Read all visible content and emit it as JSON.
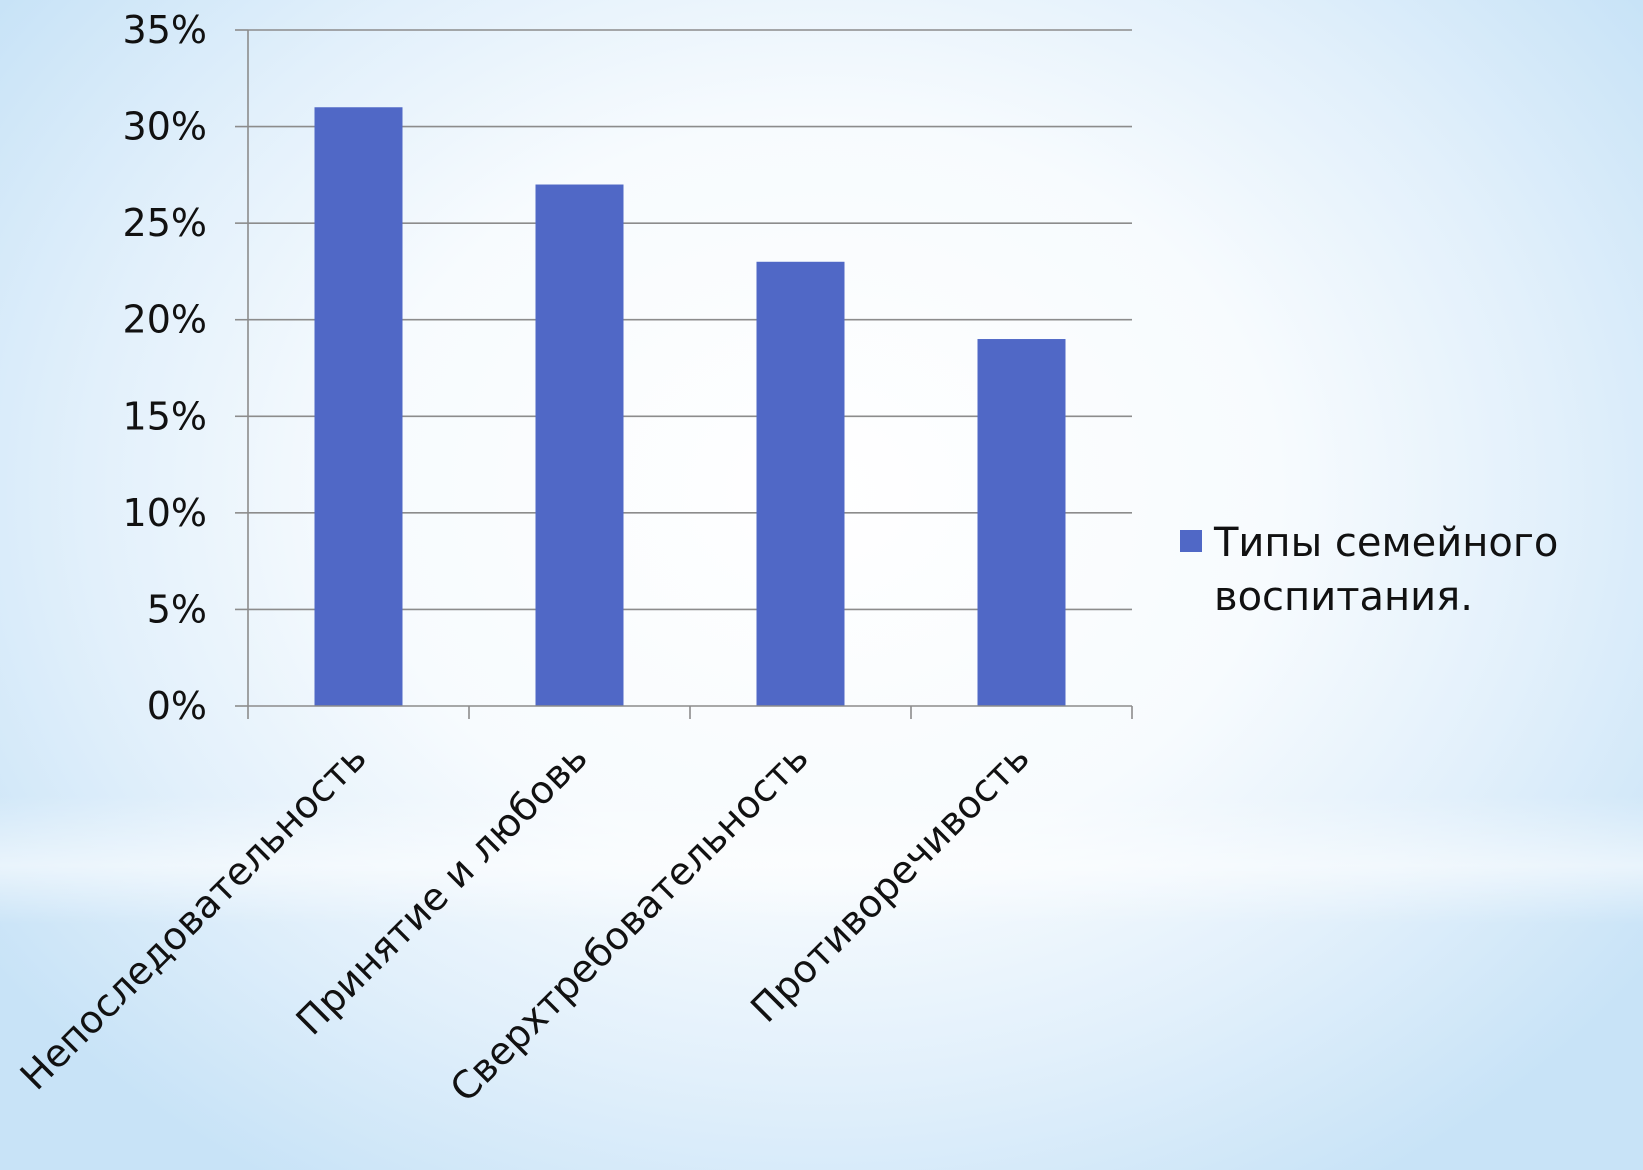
{
  "chart_data": {
    "type": "bar",
    "categories": [
      "Непоследовательность",
      "Принятие и любовь",
      "Сверхтребовательность",
      "Противоречивость"
    ],
    "series": [
      {
        "name": "Типы семейного воспитания.",
        "values": [
          31,
          27,
          23,
          19
        ],
        "color": "#5068c6"
      }
    ],
    "ylim": [
      0,
      35
    ],
    "yticks": [
      0,
      5,
      10,
      15,
      20,
      25,
      30,
      35
    ],
    "ytick_suffix": "%",
    "grid": true,
    "legend_position": "right",
    "legend_lines": [
      "Типы семейного",
      "воспитания."
    ],
    "title": "",
    "xlabel": "",
    "ylabel": ""
  }
}
